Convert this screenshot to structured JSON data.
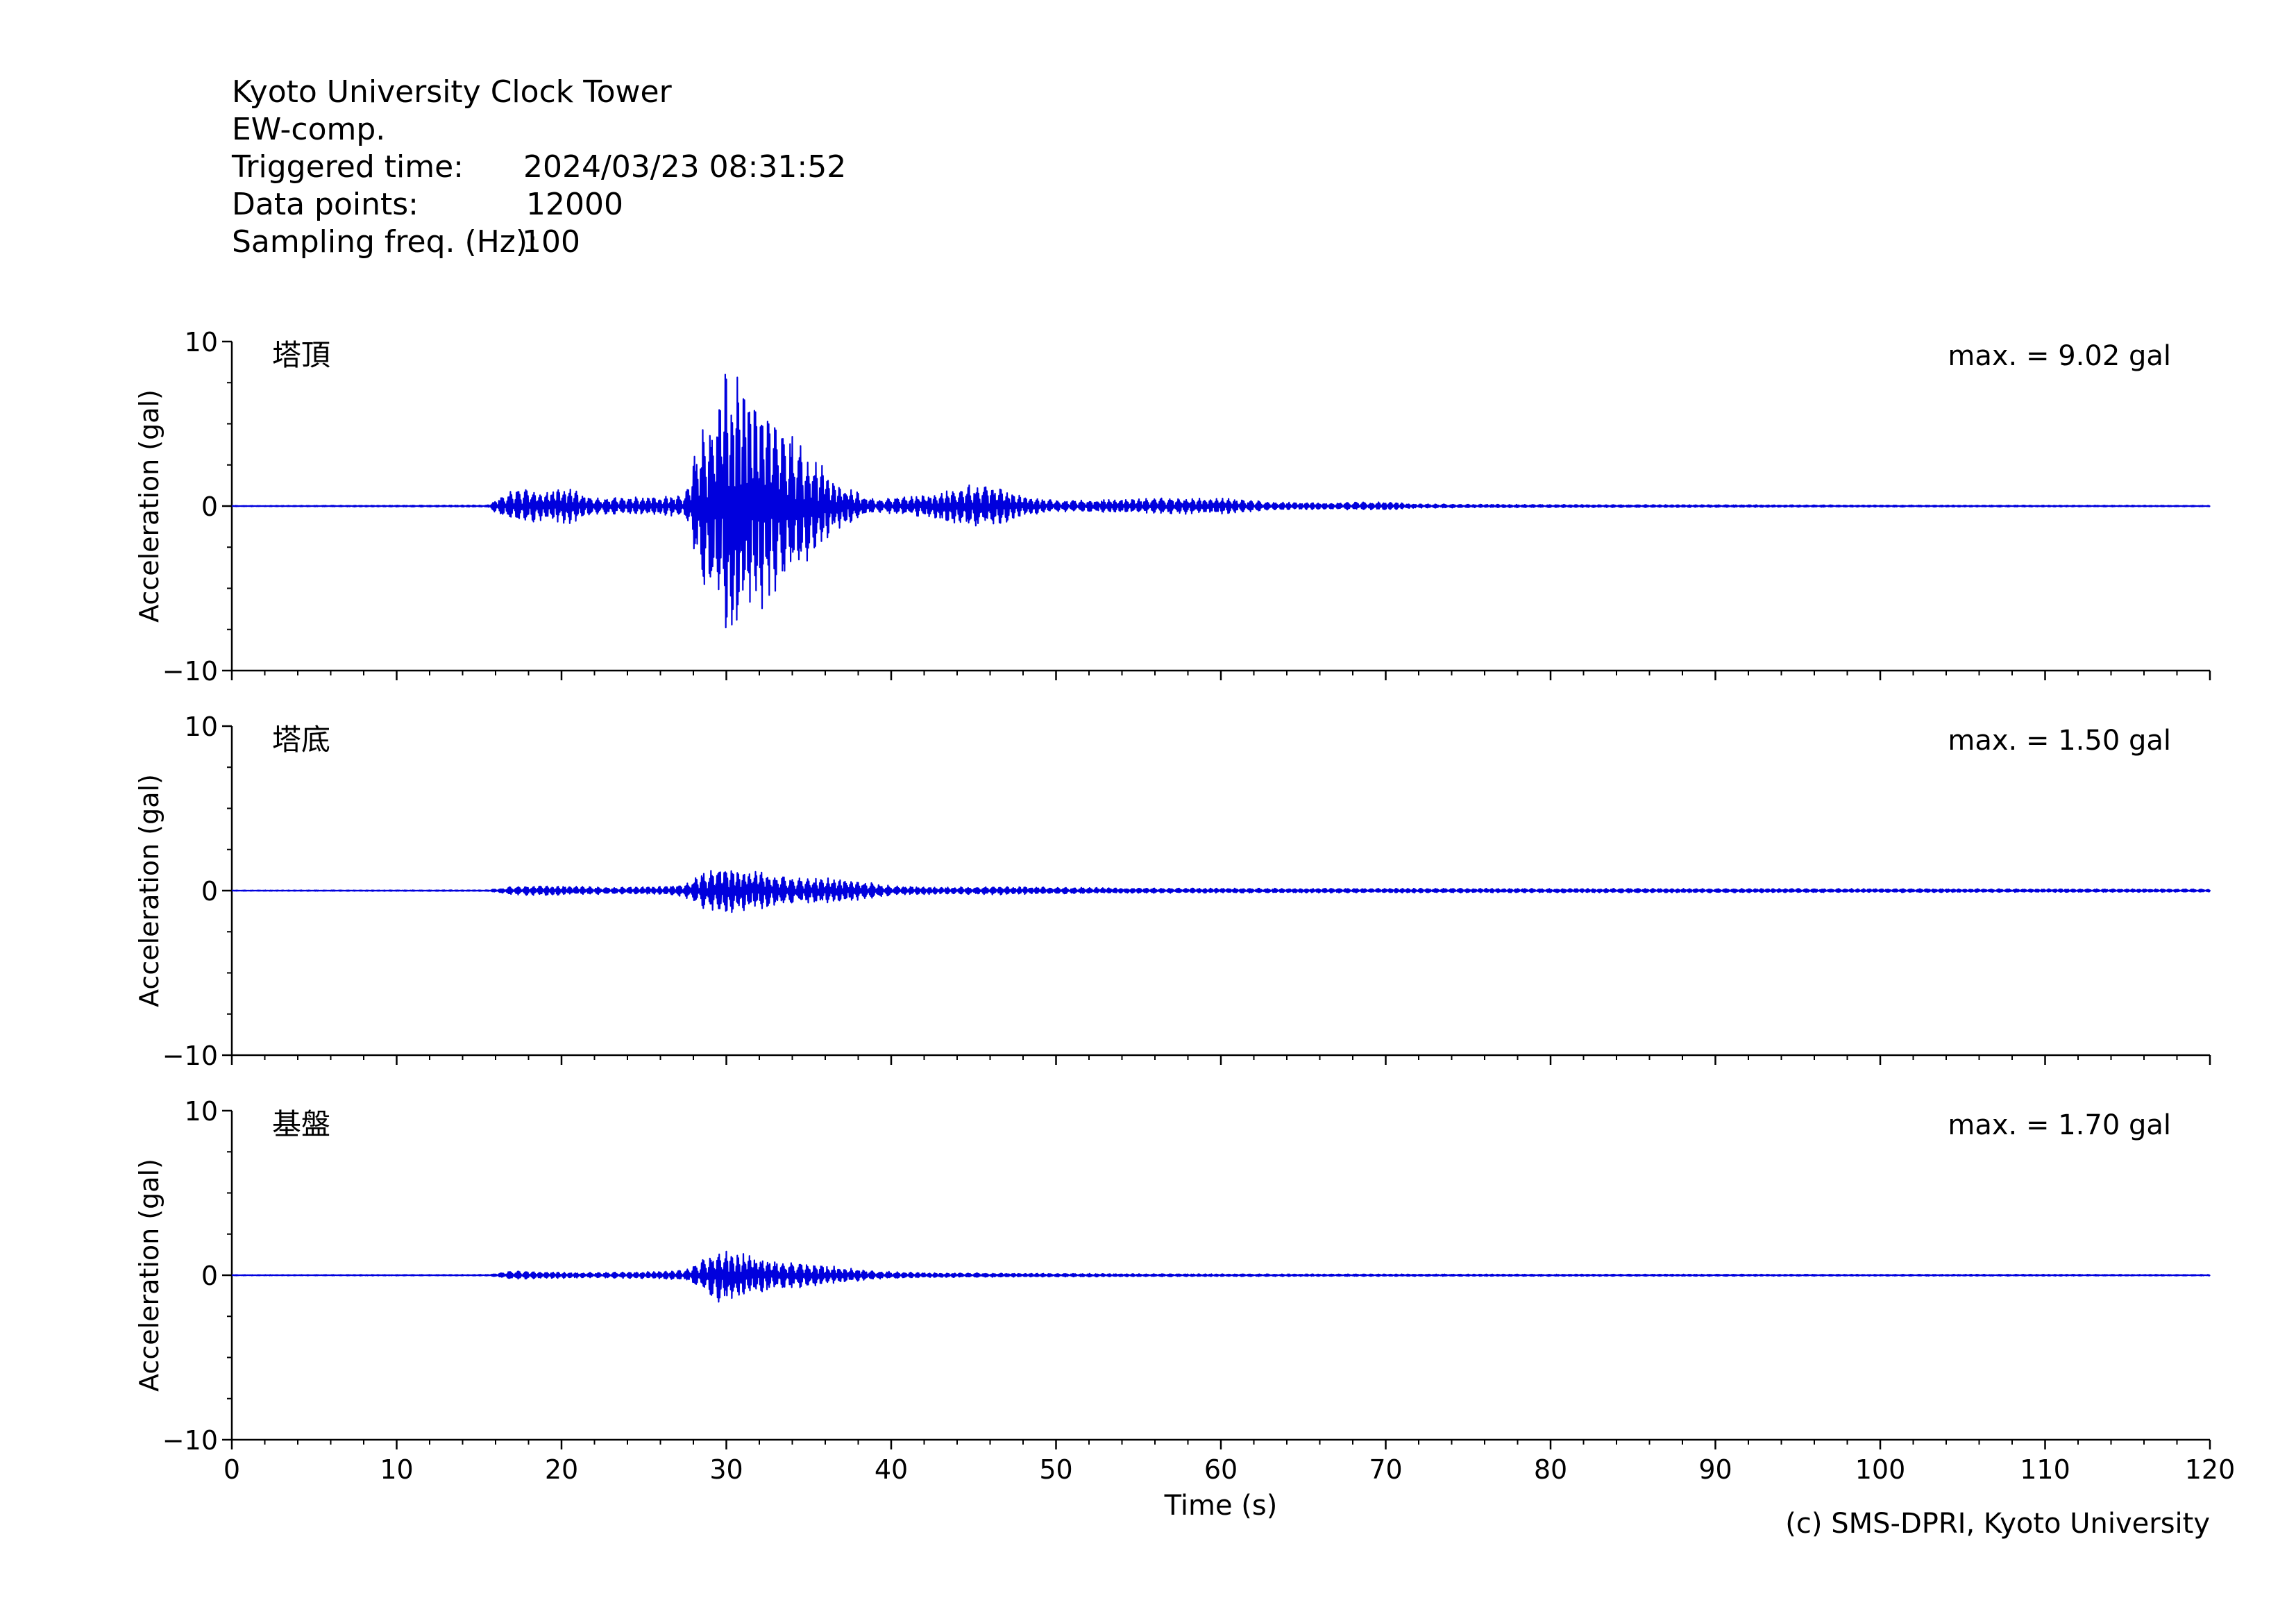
{
  "header": {
    "title": "Kyoto University Clock Tower",
    "component": "EW-comp.",
    "triggered_label": "Triggered time:",
    "triggered_value": "2024/03/23 08:31:52",
    "points_label": "Data points:",
    "points_value": "12000",
    "freq_label": "Sampling freq. (Hz):",
    "freq_value": "100"
  },
  "copyright": "(c) SMS-DPRI, Kyoto University",
  "colors": {
    "trace": "#0000dd",
    "axis": "#000000"
  },
  "chart_data": [
    {
      "type": "line",
      "label": "塔頂",
      "max_label": "max. = 9.02 gal",
      "ylabel": "Acceleration (gal)",
      "xlabel": "",
      "xlim": [
        0,
        120
      ],
      "ylim": [
        -10,
        10
      ],
      "yticks": [
        "10",
        "0",
        "−10"
      ],
      "xticks": [],
      "grid": false,
      "envelope": {
        "t": [
          0,
          15.5,
          16.5,
          17.5,
          19,
          20.5,
          22,
          24,
          26,
          27.5,
          28.5,
          29.5,
          30.5,
          31.5,
          32.5,
          33.5,
          34.5,
          35.5,
          36.5,
          37.5,
          39,
          41,
          43,
          45,
          46.5,
          48,
          50,
          53,
          57,
          60,
          63,
          66,
          70,
          72,
          75,
          80,
          90,
          100,
          110,
          120
        ],
        "amp": [
          0.02,
          0.05,
          0.8,
          1.1,
          0.9,
          1.1,
          0.5,
          0.55,
          0.6,
          0.7,
          5.0,
          7.5,
          9.02,
          7.0,
          6.5,
          5.0,
          4.0,
          3.0,
          1.5,
          1.1,
          0.4,
          0.6,
          0.9,
          1.4,
          1.2,
          0.6,
          0.35,
          0.4,
          0.5,
          0.5,
          0.25,
          0.2,
          0.25,
          0.12,
          0.1,
          0.08,
          0.07,
          0.05,
          0.04,
          0.03
        ]
      }
    },
    {
      "type": "line",
      "label": "塔底",
      "max_label": "max. = 1.50 gal",
      "ylabel": "Acceleration (gal)",
      "xlabel": "",
      "xlim": [
        0,
        120
      ],
      "ylim": [
        -10,
        10
      ],
      "yticks": [
        "10",
        "0",
        "−10"
      ],
      "xticks": [],
      "grid": false,
      "envelope": {
        "t": [
          0,
          15.5,
          17,
          19,
          21,
          23,
          26,
          27.5,
          28.5,
          29.5,
          30.5,
          31.5,
          32.5,
          34,
          36,
          38,
          40,
          43,
          46,
          50,
          55,
          60,
          70,
          80,
          90,
          100,
          110,
          120
        ],
        "amp": [
          0.02,
          0.03,
          0.25,
          0.3,
          0.25,
          0.2,
          0.25,
          0.4,
          1.1,
          1.5,
          1.4,
          1.2,
          1.1,
          0.8,
          0.8,
          0.6,
          0.3,
          0.2,
          0.25,
          0.2,
          0.15,
          0.14,
          0.13,
          0.12,
          0.12,
          0.11,
          0.1,
          0.09
        ]
      }
    },
    {
      "type": "line",
      "label": "基盤",
      "max_label": "max. = 1.70 gal",
      "ylabel": "Acceleration (gal)",
      "xlabel": "Time (s)",
      "xlim": [
        0,
        120
      ],
      "ylim": [
        -10,
        10
      ],
      "yticks": [
        "10",
        "0",
        "−10"
      ],
      "xticks": [
        "0",
        "10",
        "20",
        "30",
        "40",
        "50",
        "60",
        "70",
        "80",
        "90",
        "100",
        "110",
        "120"
      ],
      "grid": false,
      "envelope": {
        "t": [
          0,
          15.5,
          17,
          19,
          22,
          25,
          27.5,
          28.5,
          29.5,
          30.5,
          31.5,
          33,
          35,
          37,
          39,
          42,
          46,
          50,
          55,
          60,
          70,
          80,
          90,
          100,
          110,
          120
        ],
        "amp": [
          0.02,
          0.03,
          0.25,
          0.2,
          0.15,
          0.2,
          0.3,
          0.9,
          1.7,
          1.5,
          1.2,
          0.9,
          0.7,
          0.5,
          0.25,
          0.15,
          0.12,
          0.1,
          0.08,
          0.07,
          0.06,
          0.05,
          0.05,
          0.04,
          0.04,
          0.03
        ]
      }
    }
  ]
}
